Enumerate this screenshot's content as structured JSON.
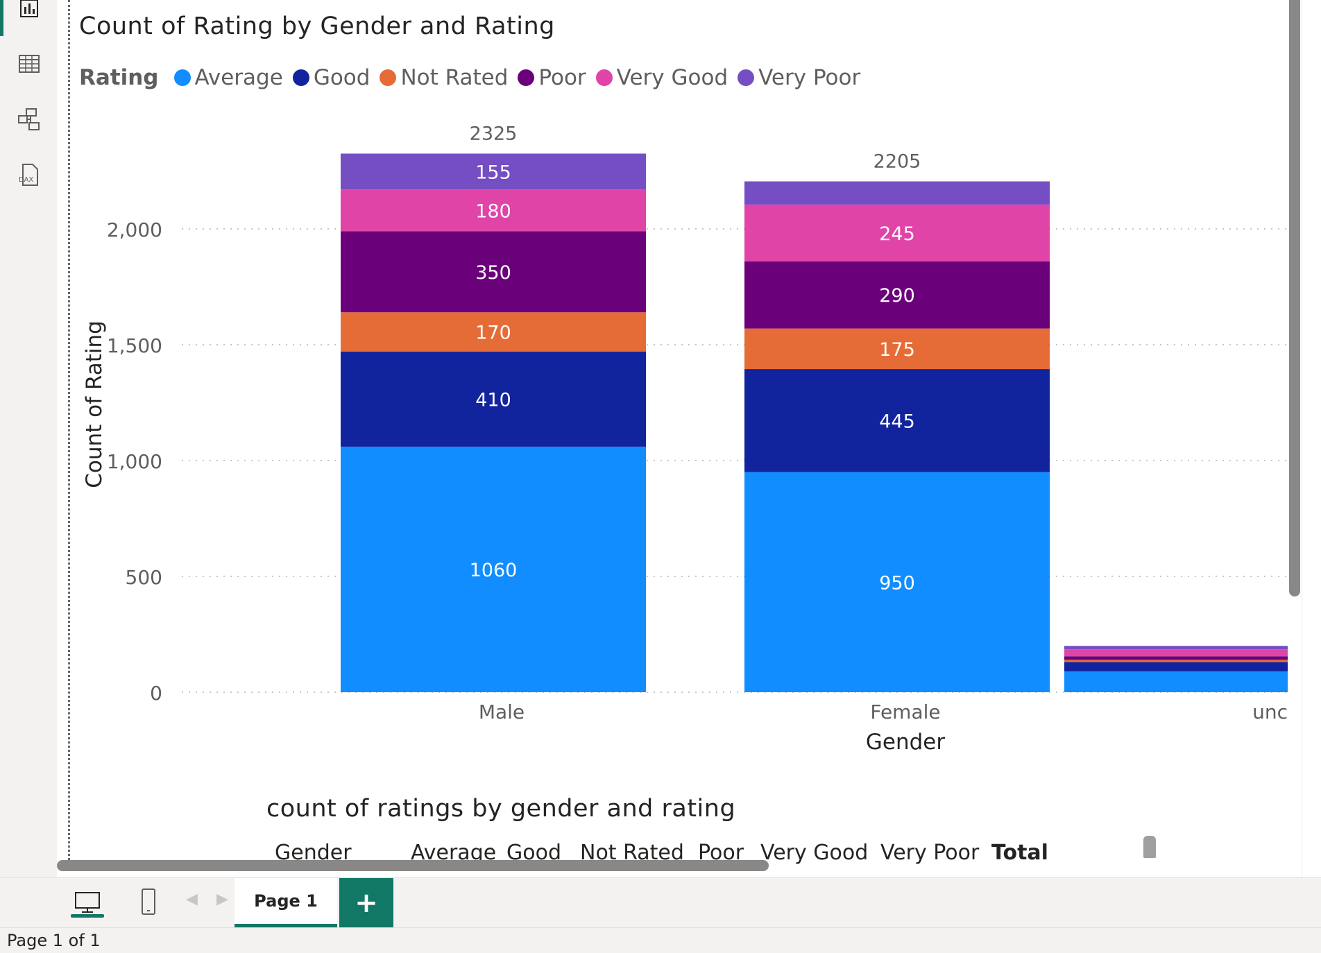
{
  "visual": {
    "title": "Count of Rating by Gender and Rating",
    "legend_label": "Rating",
    "legend_items": [
      {
        "label": "Average",
        "color": "#118DFF"
      },
      {
        "label": "Good",
        "color": "#12239E"
      },
      {
        "label": "Not Rated",
        "color": "#E66C37"
      },
      {
        "label": "Poor",
        "color": "#6B007B"
      },
      {
        "label": "Very Good",
        "color": "#E044A7"
      },
      {
        "label": "Very Poor",
        "color": "#744EC2"
      }
    ]
  },
  "chart_data": {
    "type": "bar",
    "stacked": true,
    "title": "Count of Rating by Gender and Rating",
    "xlabel": "Gender",
    "ylabel": "Count of Rating",
    "categories": [
      "Male",
      "Female",
      "unc"
    ],
    "y_ticks": [
      "0",
      "500",
      "1,000",
      "1,500",
      "2,000"
    ],
    "ylim": [
      0,
      2325
    ],
    "grid": true,
    "legend_position": "top-left",
    "series": [
      {
        "name": "Average",
        "color": "#118DFF",
        "values": [
          1060,
          950,
          90
        ]
      },
      {
        "name": "Good",
        "color": "#12239E",
        "values": [
          410,
          445,
          40
        ]
      },
      {
        "name": "Not Rated",
        "color": "#E66C37",
        "values": [
          170,
          175,
          10
        ]
      },
      {
        "name": "Poor",
        "color": "#6B007B",
        "values": [
          350,
          290,
          15
        ]
      },
      {
        "name": "Very Good",
        "color": "#E044A7",
        "values": [
          180,
          245,
          30
        ]
      },
      {
        "name": "Very Poor",
        "color": "#744EC2",
        "values": [
          155,
          100,
          15
        ]
      }
    ],
    "data_labels": [
      [
        "1060",
        "410",
        "170",
        "350",
        "180",
        "155"
      ],
      [
        "950",
        "445",
        "175",
        "290",
        "245",
        ""
      ],
      [
        "",
        "",
        "",
        "",
        "",
        ""
      ]
    ],
    "totals": [
      "2325",
      "2205",
      ""
    ]
  },
  "table": {
    "title": "count of ratings by gender and rating",
    "columns": [
      "Gender",
      "Average",
      "Good",
      "Not Rated",
      "Poor",
      "Very Good",
      "Very Poor",
      "Total"
    ]
  },
  "pages": {
    "tab_label": "Page 1",
    "add_label": "+",
    "status": "Page 1 of 1"
  },
  "rail": {
    "items": [
      "report-view-icon",
      "table-view-icon",
      "model-view-icon",
      "dax-query-icon"
    ],
    "dax_text": "DAX"
  },
  "layout_icons": [
    "desktop-layout-icon",
    "mobile-layout-icon"
  ]
}
